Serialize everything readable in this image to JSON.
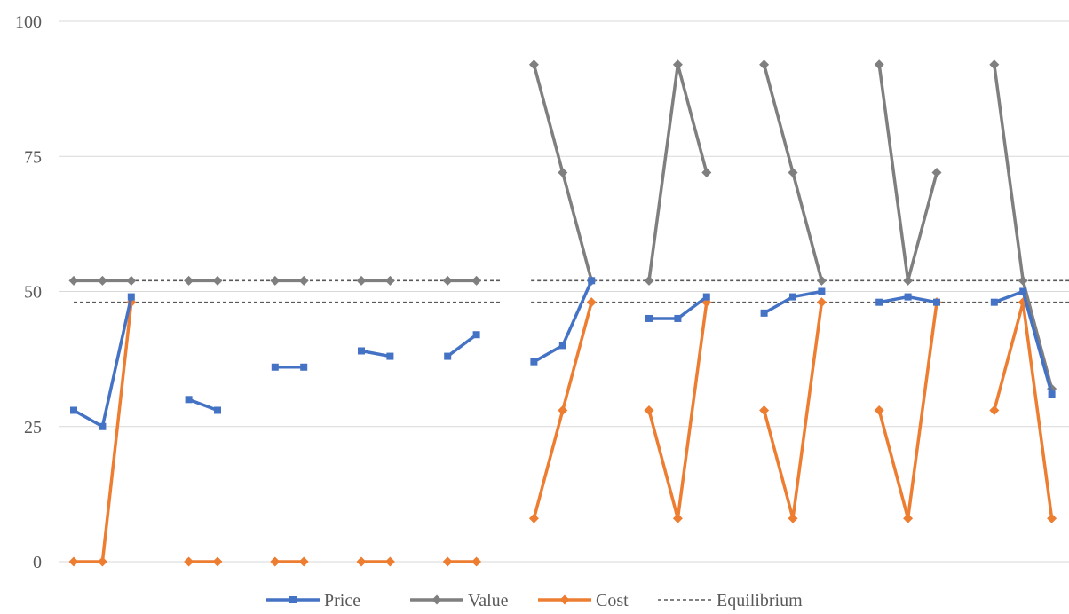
{
  "chart_data": {
    "type": "line",
    "title": "",
    "xlabel": "",
    "ylabel": "",
    "ylim": [
      0,
      100
    ],
    "yticks": [
      0,
      25,
      50,
      75,
      100
    ],
    "grid": true,
    "legend_position": "bottom",
    "x": [
      1,
      2,
      3,
      4,
      5,
      6,
      7,
      8,
      9,
      10,
      11,
      12,
      13,
      14,
      15,
      16,
      17,
      18,
      19,
      20,
      21,
      22,
      23,
      24,
      25,
      26,
      27,
      28,
      29,
      30,
      31,
      32,
      33,
      34,
      35,
      36,
      37
    ],
    "series": [
      {
        "name": "Price",
        "color": "#4472C4",
        "marker": "square",
        "values": [
          28,
          25,
          49,
          null,
          30,
          28,
          null,
          36,
          36,
          null,
          39,
          38,
          null,
          38,
          42,
          null,
          37,
          40,
          52,
          null,
          45,
          45,
          49,
          null,
          46,
          49,
          50,
          null,
          48,
          49,
          48,
          null,
          48,
          50,
          31,
          null,
          null
        ]
      },
      {
        "name": "Value",
        "color": "#7F7F7F",
        "marker": "diamond",
        "values": [
          52,
          52,
          52,
          null,
          52,
          52,
          null,
          52,
          52,
          null,
          52,
          52,
          null,
          52,
          52,
          null,
          92,
          72,
          52,
          null,
          52,
          92,
          72,
          null,
          92,
          72,
          52,
          null,
          92,
          52,
          72,
          null,
          92,
          52,
          32,
          null,
          null
        ]
      },
      {
        "name": "Cost",
        "color": "#ED7D31",
        "marker": "diamond",
        "values": [
          0,
          0,
          48,
          null,
          0,
          0,
          null,
          0,
          0,
          null,
          0,
          0,
          null,
          0,
          0,
          null,
          8,
          28,
          48,
          null,
          28,
          8,
          48,
          null,
          28,
          8,
          48,
          null,
          28,
          8,
          48,
          null,
          28,
          48,
          8,
          null,
          null
        ]
      }
    ],
    "equilibrium": {
      "name": "Equilibrium",
      "color": "#595959",
      "style": "dashed",
      "levels": [
        52,
        48
      ],
      "segments": [
        {
          "x_start": 1,
          "x_end": 15.9
        },
        {
          "x_start": 16.9,
          "x_end": 37
        }
      ]
    },
    "legend": [
      {
        "label": "Price",
        "color": "#4472C4",
        "marker": "square",
        "style": "solid"
      },
      {
        "label": "Value",
        "color": "#7F7F7F",
        "marker": "diamond",
        "style": "solid"
      },
      {
        "label": "Cost",
        "color": "#ED7D31",
        "marker": "diamond",
        "style": "solid"
      },
      {
        "label": "Equilibrium",
        "color": "#595959",
        "marker": "none",
        "style": "dashed"
      }
    ]
  }
}
